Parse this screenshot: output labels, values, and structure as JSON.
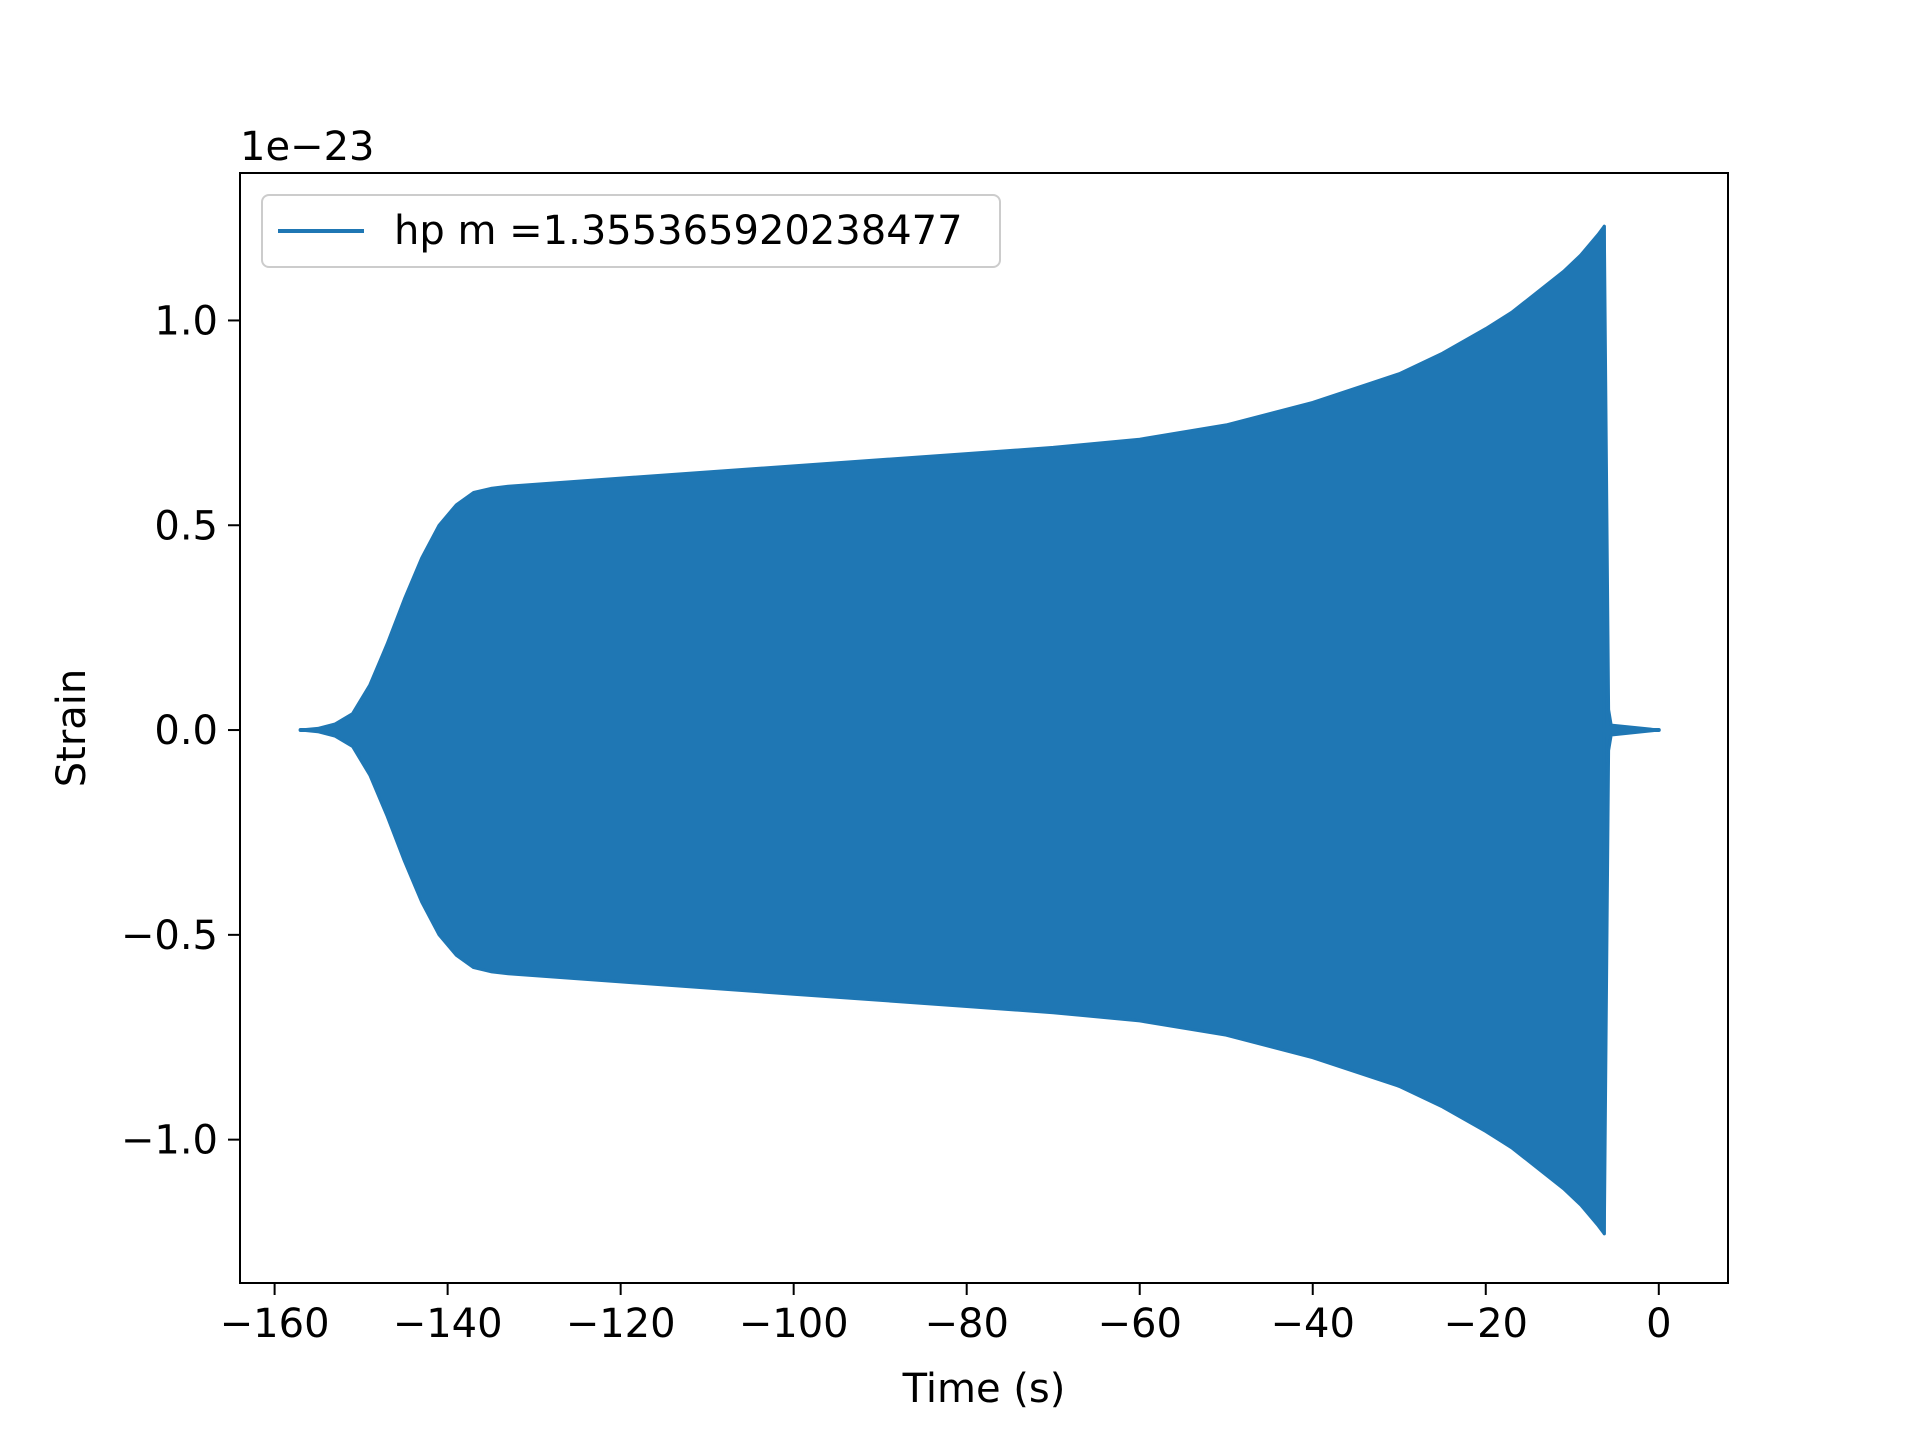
{
  "chart_data": {
    "type": "line",
    "title": "",
    "xlabel": "Time (s)",
    "ylabel": "Strain",
    "y_offset_text": "1e−23",
    "y_scale_factor": 1e-23,
    "xlim": [
      -164,
      8
    ],
    "ylim": [
      -1.35,
      1.36
    ],
    "xticks": [
      -160,
      -140,
      -120,
      -100,
      -80,
      -60,
      -40,
      -20,
      0
    ],
    "xtick_labels": [
      "−160",
      "−140",
      "−120",
      "−100",
      "−80",
      "−60",
      "−40",
      "−20",
      "0"
    ],
    "yticks": [
      -1.0,
      -0.5,
      0.0,
      0.5,
      1.0
    ],
    "ytick_labels": [
      "−1.0",
      "−0.5",
      "0.0",
      "0.5",
      "1.0"
    ],
    "grid": false,
    "legend_position": "upper-left",
    "series": [
      {
        "name": "hp m =1.355365920238477",
        "color": "#1f77b4",
        "envelope": {
          "x": [
            -157,
            -155,
            -153,
            -151,
            -149,
            -147,
            -145,
            -143,
            -141,
            -139,
            -137,
            -135,
            -133,
            -120,
            -100,
            -80,
            -70,
            -60,
            -50,
            -40,
            -30,
            -25,
            -20,
            -17,
            -14,
            -11,
            -9,
            -7,
            -6.3
          ],
          "upper": [
            0.0,
            0.004,
            0.015,
            0.04,
            0.11,
            0.21,
            0.32,
            0.42,
            0.5,
            0.55,
            0.58,
            0.59,
            0.595,
            0.615,
            0.645,
            0.675,
            0.69,
            0.71,
            0.745,
            0.8,
            0.87,
            0.92,
            0.98,
            1.02,
            1.07,
            1.12,
            1.16,
            1.21,
            1.23
          ],
          "lower": [
            0.0,
            -0.004,
            -0.015,
            -0.04,
            -0.11,
            -0.21,
            -0.32,
            -0.42,
            -0.5,
            -0.55,
            -0.58,
            -0.59,
            -0.595,
            -0.615,
            -0.645,
            -0.675,
            -0.69,
            -0.71,
            -0.745,
            -0.8,
            -0.87,
            -0.92,
            -0.98,
            -1.02,
            -1.07,
            -1.12,
            -1.16,
            -1.21,
            -1.23
          ]
        },
        "ringdown": {
          "x": [
            -6.3,
            -5.8,
            -5.5,
            0.0
          ],
          "amplitude": [
            1.23,
            0.05,
            0.012,
            0.0
          ]
        }
      }
    ]
  }
}
